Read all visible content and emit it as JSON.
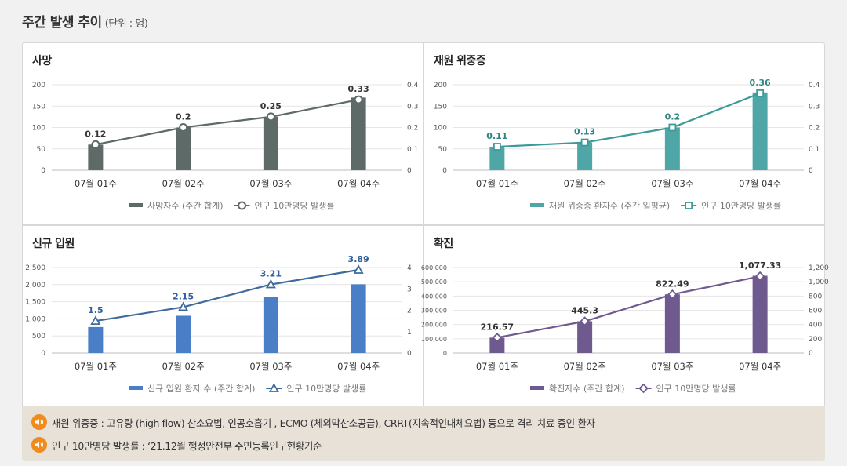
{
  "header": {
    "title": "주간 발생 추이",
    "unit": "(단위 : 명)"
  },
  "chart_data": [
    {
      "id": "deaths",
      "type": "bar",
      "title": "사망",
      "categories": [
        "07월 01주",
        "07월 02주",
        "07월 03주",
        "07월 04주"
      ],
      "series": [
        {
          "name": "사망자수 (주간 합계)",
          "kind": "bar",
          "axis": "left",
          "values": [
            60,
            100,
            125,
            170
          ]
        },
        {
          "name": "인구 10만명당 발생률",
          "kind": "line",
          "axis": "right",
          "marker": "circle",
          "values": [
            0.12,
            0.2,
            0.25,
            0.33
          ],
          "labels": [
            "0.12",
            "0.2",
            "0.25",
            "0.33"
          ]
        }
      ],
      "left_axis": {
        "min": 0,
        "max": 200,
        "ticks": [
          0,
          50,
          100,
          150,
          200
        ],
        "tick_labels": [
          "0",
          "50",
          "100",
          "150",
          "200"
        ]
      },
      "right_axis": {
        "min": 0,
        "max": 0.4,
        "ticks": [
          0,
          0.1,
          0.2,
          0.3,
          0.4
        ],
        "tick_labels": [
          "0",
          "0.1",
          "0.2",
          "0.3",
          "0.4"
        ]
      },
      "colors": {
        "bar": "#5e6a67",
        "line": "#5e6a67",
        "label": "#333333"
      }
    },
    {
      "id": "critical",
      "type": "bar",
      "title": "재원 위중증",
      "categories": [
        "07월 01주",
        "07월 02주",
        "07월 03주",
        "07월 04주"
      ],
      "series": [
        {
          "name": "재원 위중증 환자수 (주간 일평균)",
          "kind": "bar",
          "axis": "left",
          "values": [
            55,
            65,
            100,
            182
          ]
        },
        {
          "name": "인구 10만명당 발생률",
          "kind": "line",
          "axis": "right",
          "marker": "square",
          "values": [
            0.11,
            0.13,
            0.2,
            0.36
          ],
          "labels": [
            "0.11",
            "0.13",
            "0.2",
            "0.36"
          ]
        }
      ],
      "left_axis": {
        "min": 0,
        "max": 200,
        "ticks": [
          0,
          50,
          100,
          150,
          200
        ],
        "tick_labels": [
          "0",
          "50",
          "100",
          "150",
          "200"
        ]
      },
      "right_axis": {
        "min": 0,
        "max": 0.4,
        "ticks": [
          0,
          0.1,
          0.2,
          0.3,
          0.4
        ],
        "tick_labels": [
          "0",
          "0.1",
          "0.2",
          "0.3",
          "0.4"
        ]
      },
      "colors": {
        "bar": "#4ea7a6",
        "line": "#3d9a99",
        "label": "#2e8583"
      }
    },
    {
      "id": "admissions",
      "type": "bar",
      "title": "신규 입원",
      "categories": [
        "07월 01주",
        "07월 02주",
        "07월 03주",
        "07월 04주"
      ],
      "series": [
        {
          "name": "신규 입원 환자 수 (주간 합계)",
          "kind": "bar",
          "axis": "left",
          "values": [
            760,
            1090,
            1650,
            2010
          ]
        },
        {
          "name": "인구 10만명당 발생률",
          "kind": "line",
          "axis": "right",
          "marker": "triangle",
          "values": [
            1.5,
            2.15,
            3.21,
            3.89
          ],
          "labels": [
            "1.5",
            "2.15",
            "3.21",
            "3.89"
          ]
        }
      ],
      "left_axis": {
        "min": 0,
        "max": 2500,
        "ticks": [
          0,
          500,
          1000,
          1500,
          2000,
          2500
        ],
        "tick_labels": [
          "0",
          "500",
          "1,000",
          "1,500",
          "2,000",
          "2,500"
        ]
      },
      "right_axis": {
        "min": 0,
        "max": 4,
        "ticks": [
          0,
          1,
          2,
          3,
          4
        ],
        "tick_labels": [
          "0",
          "1",
          "2",
          "3",
          "4"
        ]
      },
      "colors": {
        "bar": "#4a7fc8",
        "line": "#3e6b9e",
        "label": "#2e5f9e"
      }
    },
    {
      "id": "confirmed",
      "type": "bar",
      "title": "확진",
      "categories": [
        "07월 01주",
        "07월 02주",
        "07월 03주",
        "07월 04주"
      ],
      "series": [
        {
          "name": "확진자수 (주간 합계)",
          "kind": "bar",
          "axis": "left",
          "values": [
            108000,
            223000,
            412000,
            542000
          ]
        },
        {
          "name": "인구 10만명당 발생률",
          "kind": "line",
          "axis": "right",
          "marker": "diamond",
          "values": [
            216.57,
            445.3,
            822.49,
            1077.33
          ],
          "labels": [
            "216.57",
            "445.3",
            "822.49",
            "1,077.33"
          ]
        }
      ],
      "left_axis": {
        "min": 0,
        "max": 600000,
        "ticks": [
          0,
          100000,
          200000,
          300000,
          400000,
          500000,
          600000
        ],
        "tick_labels": [
          "0",
          "100,000",
          "200,000",
          "300,000",
          "400,000",
          "500,000",
          "600,000"
        ]
      },
      "right_axis": {
        "min": 0,
        "max": 1200,
        "ticks": [
          0,
          200,
          400,
          600,
          800,
          1000,
          1200
        ],
        "tick_labels": [
          "0",
          "200",
          "400",
          "600",
          "800",
          "1,000",
          "1,200"
        ]
      },
      "colors": {
        "bar": "#6e5a8f",
        "line": "#6e5a8f",
        "label": "#333333"
      }
    }
  ],
  "notes": [
    {
      "icon": "speaker-icon",
      "text": "재원 위중증 : 고유량 (high flow) 산소요법, 인공호흡기 , ECMO (체외막산소공급), CRRT(지속적인대체요법) 등으로 격리 치료 중인 환자"
    },
    {
      "icon": "speaker-icon",
      "text": "인구 10만명당 발생률 : ‘21.12월 행정안전부 주민등록인구현황기준"
    }
  ]
}
